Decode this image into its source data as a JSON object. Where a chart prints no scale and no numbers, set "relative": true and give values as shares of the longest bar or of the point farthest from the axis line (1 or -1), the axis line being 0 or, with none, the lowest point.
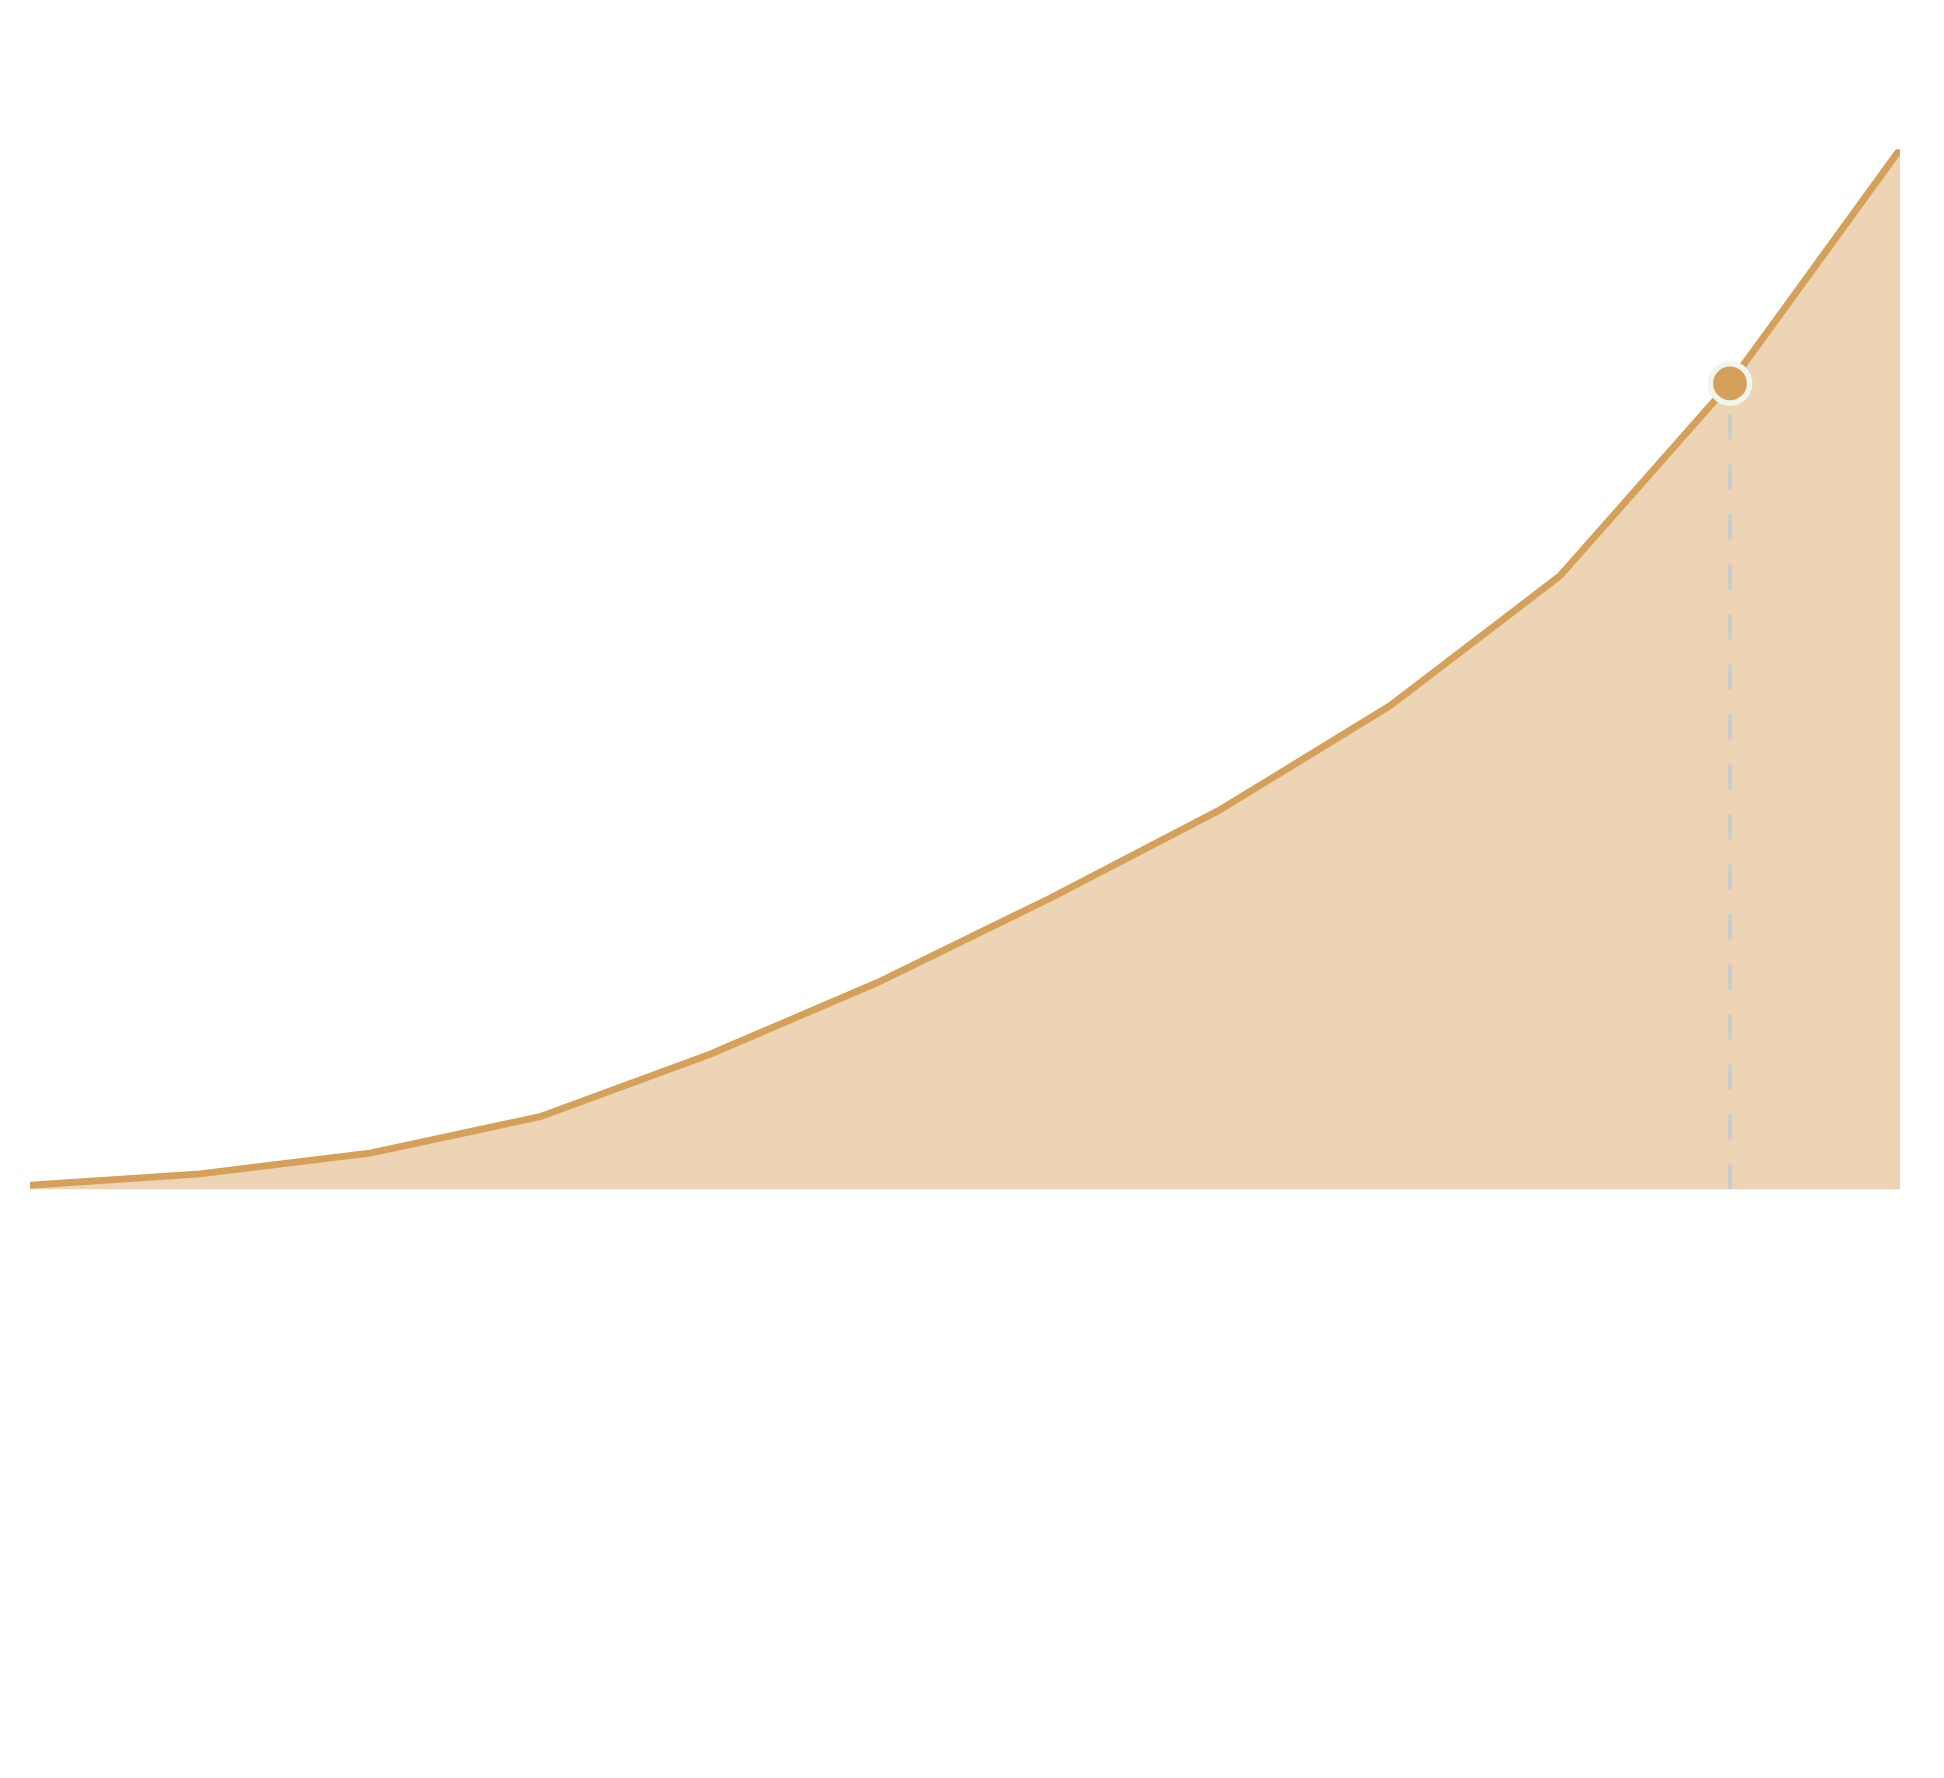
{
  "chart_data": {
    "type": "area",
    "relative": true,
    "categories": [
      null,
      null,
      null,
      null,
      null,
      null,
      null,
      null,
      null,
      null,
      null,
      null
    ],
    "series": [
      {
        "color": "#d4a05a",
        "values": [
          0.004,
          0.015,
          0.035,
          0.07,
          0.13,
          0.2,
          0.28,
          0.365,
          0.465,
          0.59,
          0.775,
          1.0
        ]
      }
    ]
  }
}
